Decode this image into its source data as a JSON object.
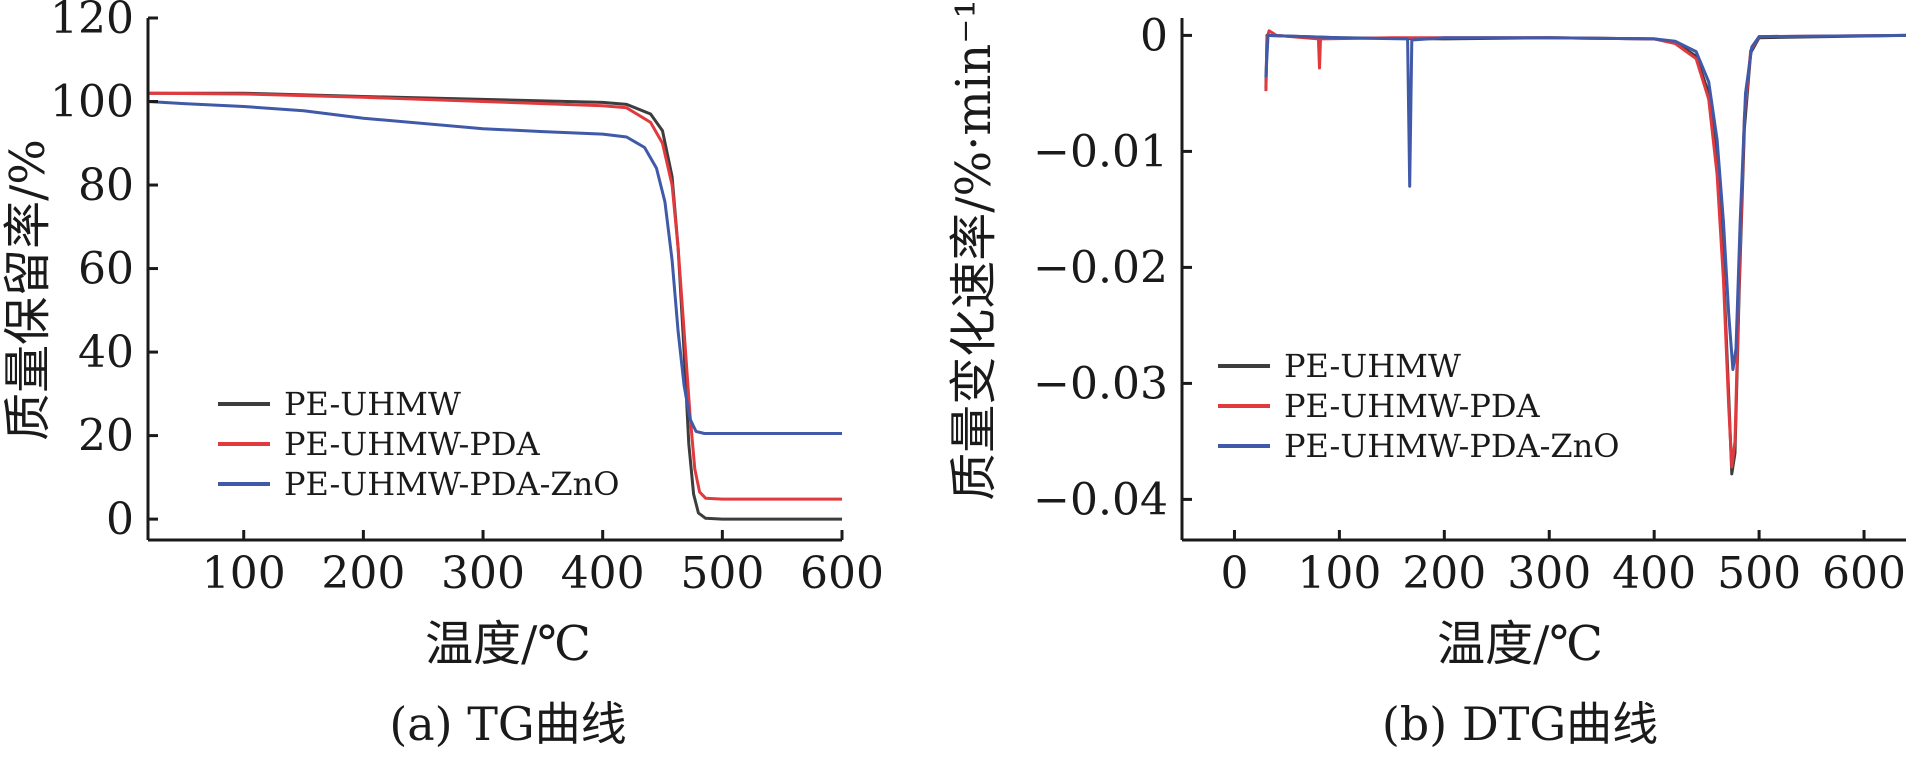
{
  "chart_data": [
    {
      "type": "line",
      "caption": "(a) TG曲线",
      "xlabel": "温度/℃",
      "ylabel": "质量保留率/%",
      "xlim": [
        20,
        600
      ],
      "ylim": [
        -5,
        120
      ],
      "xticks": [
        "100",
        "200",
        "300",
        "400",
        "500",
        "600"
      ],
      "xtick_values": [
        100,
        200,
        300,
        400,
        500,
        600
      ],
      "yticks": [
        "0",
        "20",
        "40",
        "60",
        "80",
        "100",
        "120"
      ],
      "ytick_values": [
        0,
        20,
        40,
        60,
        80,
        100,
        120
      ],
      "grid": false,
      "legend_position": "bottom-left",
      "series": [
        {
          "name": "PE-UHMW",
          "color": "#3d3d3d",
          "points": [
            [
              20,
              102
            ],
            [
              100,
              102
            ],
            [
              200,
              101.2
            ],
            [
              300,
              100.5
            ],
            [
              400,
              99.8
            ],
            [
              420,
              99.3
            ],
            [
              440,
              97
            ],
            [
              450,
              93
            ],
            [
              458,
              82
            ],
            [
              463,
              65
            ],
            [
              468,
              40
            ],
            [
              472,
              18
            ],
            [
              476,
              6
            ],
            [
              480,
              1.5
            ],
            [
              486,
              0.2
            ],
            [
              500,
              0
            ],
            [
              600,
              0
            ]
          ]
        },
        {
          "name": "PE-UHMW-PDA",
          "color": "#e0393e",
          "points": [
            [
              20,
              102
            ],
            [
              100,
              101.8
            ],
            [
              200,
              101
            ],
            [
              300,
              100
            ],
            [
              400,
              99
            ],
            [
              420,
              98.5
            ],
            [
              440,
              95
            ],
            [
              450,
              90
            ],
            [
              458,
              80
            ],
            [
              463,
              65
            ],
            [
              468,
              45
            ],
            [
              473,
              25
            ],
            [
              477,
              12
            ],
            [
              481,
              6.5
            ],
            [
              486,
              5
            ],
            [
              500,
              4.8
            ],
            [
              600,
              4.8
            ]
          ]
        },
        {
          "name": "PE-UHMW-PDA-ZnO",
          "color": "#4059a8",
          "points": [
            [
              20,
              100
            ],
            [
              50,
              99.5
            ],
            [
              100,
              98.8
            ],
            [
              150,
              97.8
            ],
            [
              200,
              96
            ],
            [
              300,
              93.5
            ],
            [
              350,
              92.8
            ],
            [
              400,
              92.2
            ],
            [
              420,
              91.5
            ],
            [
              435,
              89
            ],
            [
              445,
              84
            ],
            [
              452,
              76
            ],
            [
              458,
              62
            ],
            [
              463,
              45
            ],
            [
              468,
              32
            ],
            [
              473,
              24
            ],
            [
              478,
              21
            ],
            [
              485,
              20.5
            ],
            [
              500,
              20.5
            ],
            [
              600,
              20.5
            ]
          ]
        }
      ]
    },
    {
      "type": "line",
      "caption": "(b) DTG曲线",
      "xlabel": "温度/℃",
      "ylabel": "质量变化速率/%·min⁻¹",
      "xlim": [
        -50,
        640
      ],
      "ylim": [
        -0.0435,
        0.0015
      ],
      "xticks": [
        "0",
        "100",
        "200",
        "300",
        "400",
        "500",
        "600"
      ],
      "xtick_values": [
        0,
        100,
        200,
        300,
        400,
        500,
        600
      ],
      "yticks": [
        "0",
        "−0.01",
        "−0.02",
        "−0.03",
        "−0.04"
      ],
      "ytick_values": [
        0,
        -0.01,
        -0.02,
        -0.03,
        -0.04
      ],
      "grid": false,
      "legend_position": "bottom-left",
      "series": [
        {
          "name": "PE-UHMW",
          "color": "#3d3d3d",
          "points": [
            [
              30,
              -0.0045
            ],
            [
              31,
              0
            ],
            [
              100,
              -0.0002
            ],
            [
              200,
              -0.0003
            ],
            [
              300,
              -0.0002
            ],
            [
              400,
              -0.0003
            ],
            [
              420,
              -0.0006
            ],
            [
              440,
              -0.0018
            ],
            [
              452,
              -0.005
            ],
            [
              460,
              -0.011
            ],
            [
              466,
              -0.02
            ],
            [
              471,
              -0.031
            ],
            [
              474,
              -0.0378
            ],
            [
              477,
              -0.036
            ],
            [
              481,
              -0.022
            ],
            [
              486,
              -0.008
            ],
            [
              492,
              -0.0015
            ],
            [
              500,
              -0.0002
            ],
            [
              640,
              0
            ]
          ]
        },
        {
          "name": "PE-UHMW-PDA",
          "color": "#e0393e",
          "points": [
            [
              30,
              -0.0048
            ],
            [
              31,
              -0.0002
            ],
            [
              33,
              0.0004
            ],
            [
              40,
              0
            ],
            [
              80,
              -0.0003
            ],
            [
              81,
              -0.0028
            ],
            [
              82,
              -0.0003
            ],
            [
              150,
              -0.0002
            ],
            [
              300,
              -0.0002
            ],
            [
              400,
              -0.0003
            ],
            [
              420,
              -0.0007
            ],
            [
              440,
              -0.002
            ],
            [
              452,
              -0.0055
            ],
            [
              460,
              -0.012
            ],
            [
              466,
              -0.021
            ],
            [
              471,
              -0.032
            ],
            [
              474,
              -0.0372
            ],
            [
              477,
              -0.035
            ],
            [
              481,
              -0.021
            ],
            [
              486,
              -0.007
            ],
            [
              492,
              -0.0013
            ],
            [
              500,
              -0.0001
            ],
            [
              640,
              0
            ]
          ]
        },
        {
          "name": "PE-UHMW-PDA-ZnO",
          "color": "#4059a8",
          "points": [
            [
              30,
              -0.0036
            ],
            [
              32,
              0
            ],
            [
              100,
              -0.0002
            ],
            [
              165,
              -0.0003
            ],
            [
              167,
              -0.013
            ],
            [
              169,
              -0.0004
            ],
            [
              200,
              -0.0002
            ],
            [
              300,
              -0.0002
            ],
            [
              400,
              -0.0003
            ],
            [
              420,
              -0.0005
            ],
            [
              440,
              -0.0014
            ],
            [
              452,
              -0.004
            ],
            [
              460,
              -0.009
            ],
            [
              466,
              -0.016
            ],
            [
              471,
              -0.024
            ],
            [
              475,
              -0.0288
            ],
            [
              478,
              -0.027
            ],
            [
              482,
              -0.016
            ],
            [
              487,
              -0.005
            ],
            [
              493,
              -0.001
            ],
            [
              500,
              -0.0001
            ],
            [
              640,
              0
            ]
          ]
        }
      ]
    }
  ]
}
